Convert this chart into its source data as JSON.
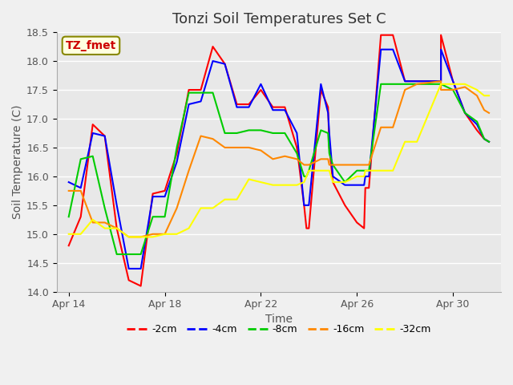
{
  "title": "Tonzi Soil Temperatures Set C",
  "xlabel": "Time",
  "ylabel": "Soil Temperature (C)",
  "ylim": [
    14.0,
    18.5
  ],
  "fig_facecolor": "#f0f0f0",
  "ax_facecolor": "#e8e8e8",
  "annotation_box": "TZ_fmet",
  "series_colors": {
    "-2cm": "#ff0000",
    "-4cm": "#0000ff",
    "-8cm": "#00cc00",
    "-16cm": "#ff8800",
    "-32cm": "#ffff00"
  },
  "xtick_labels": [
    "Apr 14",
    "Apr 18",
    "Apr 22",
    "Apr 26",
    "Apr 30"
  ],
  "xtick_positions": [
    0,
    4,
    8,
    12,
    16
  ],
  "series_x": {
    "-2cm": [
      0,
      0.5,
      1,
      1.5,
      2,
      2.5,
      3,
      3.5,
      4,
      4.5,
      5,
      5.5,
      6,
      6.5,
      7,
      7.5,
      8,
      8.5,
      9,
      9.5,
      9.8,
      9.9,
      10,
      10.5,
      10.8,
      10.85,
      11,
      11.5,
      12,
      12.3,
      12.35,
      12.5,
      13,
      13.5,
      14,
      14.5,
      15.5,
      15.5,
      16,
      16.5,
      17,
      17.3,
      17.5
    ],
    "-4cm": [
      0,
      0.5,
      1,
      1.5,
      2,
      2.5,
      3,
      3.5,
      4,
      4.5,
      5,
      5.5,
      6,
      6.5,
      7,
      7.5,
      8,
      8.5,
      9,
      9.5,
      9.8,
      9.9,
      10,
      10.5,
      10.8,
      10.85,
      11,
      11.5,
      12,
      12.3,
      12.35,
      12.5,
      13,
      13.5,
      14,
      14.5,
      15.5,
      15.5,
      16,
      16.5,
      17,
      17.3,
      17.5
    ],
    "-8cm": [
      0,
      0.5,
      1,
      1.5,
      2,
      2.5,
      3,
      3.5,
      4,
      4.5,
      5,
      5.5,
      6,
      6.5,
      7,
      7.5,
      8,
      8.5,
      9,
      9.5,
      9.8,
      9.9,
      10,
      10.5,
      10.8,
      10.85,
      11,
      11.5,
      12,
      12.3,
      12.35,
      12.5,
      13,
      13.5,
      14,
      14.5,
      15.5,
      15.5,
      16,
      16.5,
      17,
      17.3,
      17.5
    ],
    "-16cm": [
      0,
      0.5,
      1,
      1.5,
      2,
      2.5,
      3,
      3.5,
      4,
      4.5,
      5,
      5.5,
      6,
      6.5,
      7,
      7.5,
      8,
      8.5,
      9,
      9.5,
      9.8,
      9.9,
      10,
      10.5,
      10.8,
      10.85,
      11,
      11.5,
      12,
      12.3,
      12.35,
      12.5,
      13,
      13.5,
      14,
      14.5,
      15.5,
      15.5,
      16,
      16.5,
      17,
      17.3,
      17.5
    ],
    "-32cm": [
      0,
      0.5,
      1,
      1.5,
      2,
      2.5,
      3,
      3.5,
      4,
      4.5,
      5,
      5.5,
      6,
      6.5,
      7,
      7.5,
      8,
      8.5,
      9,
      9.5,
      9.8,
      9.9,
      10,
      10.5,
      10.8,
      10.85,
      11,
      11.5,
      12,
      12.3,
      12.35,
      12.5,
      13,
      13.5,
      14,
      14.5,
      15.5,
      15.5,
      16,
      16.5,
      17,
      17.3,
      17.5
    ]
  },
  "series_y": {
    "-2cm": [
      14.8,
      15.3,
      16.9,
      16.7,
      15.1,
      14.2,
      14.1,
      15.7,
      15.75,
      16.4,
      17.5,
      17.5,
      18.25,
      17.95,
      17.25,
      17.25,
      17.5,
      17.2,
      17.2,
      16.5,
      15.5,
      15.1,
      15.1,
      17.5,
      17.2,
      16.5,
      15.9,
      15.5,
      15.2,
      15.1,
      15.8,
      15.8,
      18.45,
      18.45,
      17.65,
      17.65,
      17.65,
      18.45,
      17.65,
      17.1,
      16.8,
      16.65,
      16.6
    ],
    "-4cm": [
      15.9,
      15.8,
      16.75,
      16.7,
      15.5,
      14.4,
      14.4,
      15.65,
      15.65,
      16.25,
      17.25,
      17.3,
      18.0,
      17.95,
      17.2,
      17.2,
      17.6,
      17.15,
      17.15,
      16.75,
      15.5,
      15.5,
      15.5,
      17.6,
      17.1,
      16.75,
      16.0,
      15.85,
      15.85,
      15.85,
      16.0,
      16.0,
      18.2,
      18.2,
      17.65,
      17.65,
      17.65,
      18.2,
      17.65,
      17.1,
      16.9,
      16.65,
      16.6
    ],
    "-8cm": [
      15.3,
      16.3,
      16.35,
      15.45,
      14.65,
      14.65,
      14.65,
      15.3,
      15.3,
      16.5,
      17.45,
      17.45,
      17.45,
      16.75,
      16.75,
      16.8,
      16.8,
      16.75,
      16.75,
      16.4,
      16.0,
      16.0,
      16.1,
      16.8,
      16.75,
      16.4,
      16.2,
      15.9,
      16.1,
      16.1,
      16.1,
      16.1,
      17.6,
      17.6,
      17.6,
      17.6,
      17.6,
      17.6,
      17.5,
      17.1,
      16.95,
      16.65,
      16.6
    ],
    "-16cm": [
      15.75,
      15.75,
      15.2,
      15.2,
      15.1,
      14.95,
      14.95,
      15.0,
      15.0,
      15.45,
      16.1,
      16.7,
      16.65,
      16.5,
      16.5,
      16.5,
      16.45,
      16.3,
      16.35,
      16.3,
      16.2,
      16.2,
      16.2,
      16.3,
      16.3,
      16.2,
      16.2,
      16.2,
      16.2,
      16.2,
      16.2,
      16.2,
      16.85,
      16.85,
      17.5,
      17.6,
      17.65,
      17.5,
      17.5,
      17.55,
      17.4,
      17.15,
      17.1
    ],
    "-32cm": [
      15.0,
      15.0,
      15.25,
      15.1,
      15.1,
      14.95,
      14.95,
      14.95,
      15.0,
      15.0,
      15.1,
      15.45,
      15.45,
      15.6,
      15.6,
      15.95,
      15.9,
      15.85,
      15.85,
      15.85,
      15.9,
      16.0,
      16.1,
      16.1,
      16.1,
      16.1,
      15.9,
      15.9,
      16.0,
      16.0,
      16.1,
      16.1,
      16.1,
      16.1,
      16.6,
      16.6,
      17.6,
      17.6,
      17.6,
      17.6,
      17.5,
      17.4,
      17.4
    ]
  }
}
